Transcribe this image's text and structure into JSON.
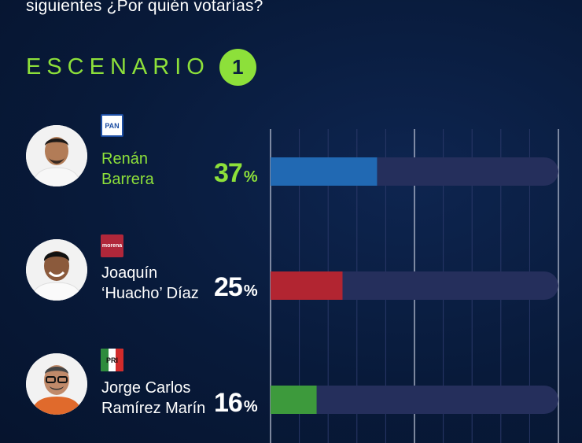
{
  "question": "siguientes ¿Por quién votarías?",
  "scenario": {
    "label": "ESCENARIO",
    "number": "1"
  },
  "colors": {
    "accent": "#8de03a",
    "track": "#252f5c",
    "background": "#081a3a"
  },
  "candidates": [
    {
      "name_line1": "Renán",
      "name_line2": "Barrera",
      "party_logo_text": "PAN",
      "party_icon": "pan-logo-icon",
      "bar_color": "#2169b3",
      "pct_label": "37"
    },
    {
      "name_line1": "Joaquín",
      "name_line2": "‘Huacho’ Díaz",
      "party_logo_text": "morena",
      "party_icon": "morena-logo-icon",
      "bar_color": "#b22531",
      "pct_label": "25"
    },
    {
      "name_line1": "Jorge Carlos",
      "name_line2": "Ramírez Marín",
      "party_logo_text": "PRI",
      "party_icon": "pri-logo-icon",
      "bar_color": "#3d9a3c",
      "pct_label": "16"
    }
  ],
  "pct_suffix": "%",
  "chart_data": {
    "type": "bar",
    "orientation": "horizontal",
    "title": "ESCENARIO 1",
    "categories": [
      "Renán Barrera",
      "Joaquín ‘Huacho’ Díaz",
      "Jorge Carlos Ramírez Marín"
    ],
    "values": [
      37,
      25,
      16
    ],
    "value_suffix": "%",
    "xlim": [
      0,
      100
    ],
    "grid": true
  }
}
